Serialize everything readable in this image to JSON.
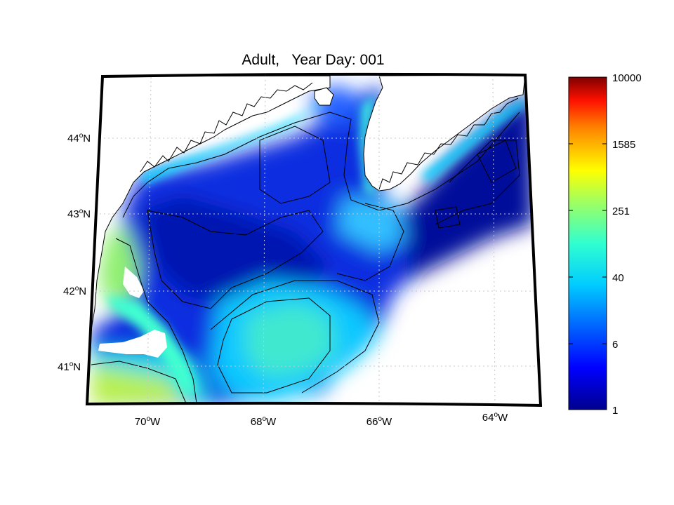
{
  "title": "Adult,   Year Day: 001",
  "lat_labels": [
    {
      "deg": "44",
      "hemi": "N"
    },
    {
      "deg": "43",
      "hemi": "N"
    },
    {
      "deg": "42",
      "hemi": "N"
    },
    {
      "deg": "41",
      "hemi": "N"
    }
  ],
  "lon_labels": [
    {
      "deg": "70",
      "hemi": "W"
    },
    {
      "deg": "68",
      "hemi": "W"
    },
    {
      "deg": "66",
      "hemi": "W"
    },
    {
      "deg": "64",
      "hemi": "W"
    }
  ],
  "colorbar": {
    "scale": "log",
    "min": 1,
    "max": 10000,
    "tick_labels": [
      "10000",
      "1585",
      "251",
      "40",
      "6",
      "1"
    ],
    "colormap": [
      "#00008f",
      "#0000ff",
      "#00a0ff",
      "#00ffff",
      "#7fff7f",
      "#ffff00",
      "#ff8000",
      "#ff0000",
      "#800000"
    ]
  },
  "map": {
    "land_color": "#ffffff",
    "grid": true,
    "contour_color": "#000000"
  }
}
